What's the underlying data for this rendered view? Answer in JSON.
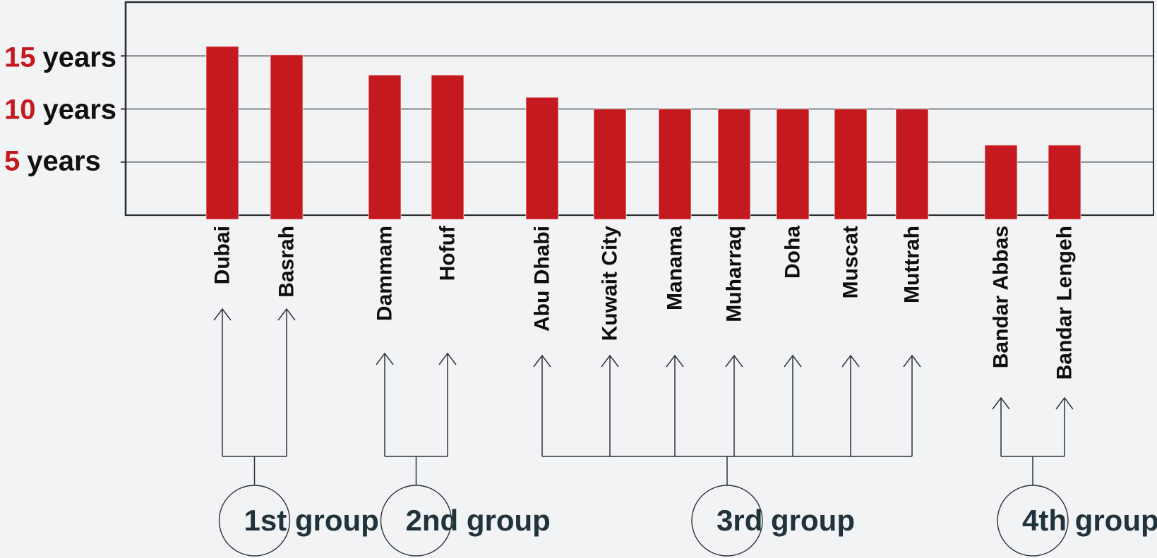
{
  "chart_data": {
    "type": "bar",
    "title": "",
    "xlabel": "",
    "ylabel": "",
    "unit": "years",
    "ylim": [
      0,
      20
    ],
    "grid": true,
    "yticks": [
      {
        "num": "15",
        "unit": "years",
        "value": 15
      },
      {
        "num": "10",
        "unit": "years",
        "value": 10
      },
      {
        "num": "5",
        "unit": "years",
        "value": 5
      }
    ],
    "categories": [
      "Dubai",
      "Basrah",
      "Dammam",
      "Hofuf",
      "Abu Dhabi",
      "Kuwait City",
      "Manama",
      "Muharraq",
      "Doha",
      "Muscat",
      "Muttrah",
      "Bandar Abbas",
      "Bandar Lengeh"
    ],
    "values": [
      15.9,
      15.1,
      13.2,
      13.2,
      11.1,
      10,
      10,
      10,
      10,
      10,
      10,
      6.6,
      6.6
    ],
    "groups": [
      {
        "label": "1st group",
        "cities": [
          "Dubai",
          "Basrah"
        ]
      },
      {
        "label": "2nd group",
        "cities": [
          "Dammam",
          "Hofuf"
        ]
      },
      {
        "label": "3rd group",
        "cities": [
          "Abu Dhabi",
          "Kuwait City",
          "Manama",
          "Muharraq",
          "Doha",
          "Muscat",
          "Muttrah"
        ]
      },
      {
        "label": "4th group",
        "cities": [
          "Bandar Abbas",
          "Bandar Lengeh"
        ]
      }
    ],
    "legend": null,
    "annotation_style": "arrows from group circles point to member cities"
  },
  "colors": {
    "background": "#f2f3f5",
    "bar": "#c41a1f",
    "bar_edge": "#e8c9c9",
    "tick_number": "#c41a1f",
    "tick_unit": "#101010",
    "city_label": "#0e0e0e",
    "group_label": "#20323a",
    "gridline": "#55585b",
    "border": "#2c2f33",
    "annotation_line": "#2e3236"
  }
}
